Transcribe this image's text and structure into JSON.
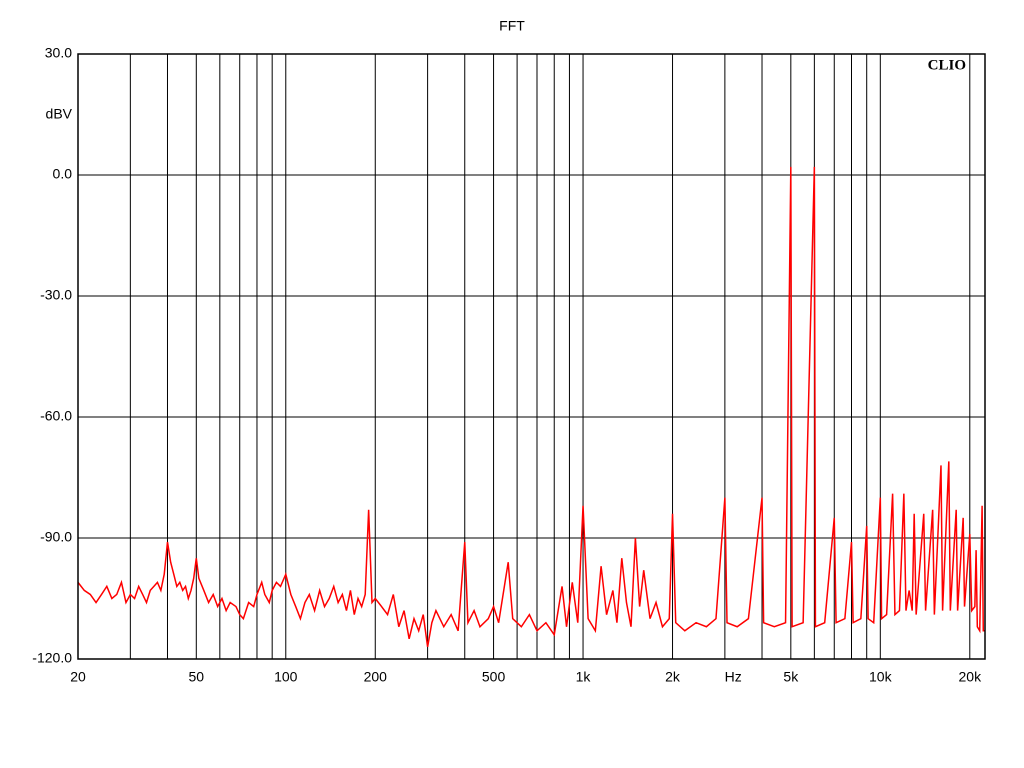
{
  "chart_data": {
    "type": "line",
    "title": "FFT",
    "y_label": "dBV",
    "watermark": "CLIO",
    "x_scale": "log",
    "grid": true,
    "color": "#ff0000",
    "xlim": [
      20,
      22500
    ],
    "ylim": [
      -120,
      30
    ],
    "xticks": [
      20,
      30,
      40,
      50,
      60,
      70,
      80,
      90,
      100,
      200,
      300,
      400,
      500,
      600,
      700,
      800,
      900,
      1000,
      2000,
      3000,
      4000,
      5000,
      6000,
      7000,
      8000,
      9000,
      10000,
      20000
    ],
    "xtick_labels": [
      {
        "value": 20,
        "label": "20"
      },
      {
        "value": 50,
        "label": "50"
      },
      {
        "value": 100,
        "label": "100"
      },
      {
        "value": 200,
        "label": "200"
      },
      {
        "value": 500,
        "label": "500"
      },
      {
        "value": 1000,
        "label": "1k"
      },
      {
        "value": 2000,
        "label": "2k"
      },
      {
        "value": 3200,
        "label": "Hz"
      },
      {
        "value": 5000,
        "label": "5k"
      },
      {
        "value": 10000,
        "label": "10k"
      },
      {
        "value": 20000,
        "label": "20k"
      }
    ],
    "yticks": [
      {
        "value": 30,
        "label": "30.0"
      },
      {
        "value": 0,
        "label": "0.0"
      },
      {
        "value": -30,
        "label": "-30.0"
      },
      {
        "value": -60,
        "label": "-60.0"
      },
      {
        "value": -90,
        "label": "-90.0"
      },
      {
        "value": -120,
        "label": "-120.0"
      }
    ],
    "x": [
      20,
      21,
      22,
      23,
      24,
      25,
      26,
      27,
      28,
      29,
      30,
      31,
      32,
      33,
      34,
      35,
      36,
      37,
      38,
      39,
      40,
      41,
      42,
      43,
      44,
      45,
      46,
      47,
      48,
      49,
      50,
      51,
      53,
      55,
      57,
      59,
      61,
      63,
      65,
      68,
      70,
      72,
      75,
      78,
      80,
      83,
      85,
      88,
      90,
      93,
      96,
      100,
      104,
      108,
      112,
      116,
      120,
      125,
      130,
      135,
      140,
      145,
      150,
      155,
      160,
      165,
      170,
      175,
      180,
      185,
      190,
      195,
      200,
      210,
      220,
      230,
      240,
      250,
      260,
      270,
      280,
      290,
      300,
      310,
      320,
      340,
      360,
      380,
      400,
      410,
      430,
      450,
      480,
      500,
      520,
      560,
      580,
      620,
      660,
      700,
      750,
      800,
      850,
      880,
      920,
      960,
      1000,
      1040,
      1100,
      1150,
      1200,
      1260,
      1300,
      1350,
      1400,
      1450,
      1500,
      1550,
      1600,
      1680,
      1760,
      1850,
      1950,
      2000,
      2050,
      2200,
      2400,
      2600,
      2800,
      3000,
      3050,
      3300,
      3600,
      4000,
      4050,
      4400,
      4800,
      5000,
      5050,
      5500,
      6000,
      6050,
      6500,
      7000,
      7100,
      7600,
      8000,
      8100,
      8600,
      9000,
      9100,
      9500,
      10000,
      10100,
      10500,
      11000,
      11200,
      11600,
      12000,
      12200,
      12500,
      12800,
      13000,
      13200,
      14000,
      14200,
      15000,
      15200,
      16000,
      16200,
      17000,
      17200,
      18000,
      18200,
      19000,
      19200,
      20000,
      20300,
      20800,
      21000,
      21200,
      21600,
      22000,
      22200,
      22500
    ],
    "values": [
      -101,
      -103,
      -104,
      -106,
      -104,
      -102,
      -105,
      -104,
      -101,
      -106,
      -104,
      -105,
      -102,
      -104,
      -106,
      -103,
      -102,
      -101,
      -103,
      -99,
      -91,
      -96,
      -99,
      -102,
      -101,
      -103,
      -102,
      -105,
      -103,
      -100,
      -95,
      -100,
      -103,
      -106,
      -104,
      -107,
      -105,
      -108,
      -106,
      -107,
      -109,
      -110,
      -106,
      -107,
      -104,
      -101,
      -104,
      -106,
      -103,
      -101,
      -102,
      -99,
      -104,
      -107,
      -110,
      -106,
      -104,
      -108,
      -103,
      -107,
      -105,
      -102,
      -106,
      -104,
      -108,
      -103,
      -109,
      -105,
      -107,
      -104,
      -83,
      -106,
      -105,
      -107,
      -109,
      -104,
      -112,
      -108,
      -115,
      -110,
      -113,
      -109,
      -117,
      -111,
      -108,
      -112,
      -109,
      -113,
      -91,
      -111,
      -108,
      -112,
      -110,
      -107,
      -111,
      -96,
      -110,
      -112,
      -109,
      -113,
      -111,
      -114,
      -102,
      -112,
      -101,
      -111,
      -82,
      -110,
      -113,
      -97,
      -109,
      -103,
      -111,
      -95,
      -106,
      -112,
      -90,
      -107,
      -98,
      -110,
      -106,
      -112,
      -110,
      -84,
      -111,
      -113,
      -111,
      -112,
      -110,
      -80,
      -111,
      -112,
      -110,
      -80,
      -111,
      -112,
      -111,
      2,
      -112,
      -111,
      2,
      -112,
      -111,
      -85,
      -111,
      -110,
      -91,
      -111,
      -110,
      -87,
      -110,
      -111,
      -80,
      -110,
      -109,
      -79,
      -109,
      -108,
      -79,
      -108,
      -103,
      -108,
      -84,
      -109,
      -84,
      -108,
      -83,
      -109,
      -72,
      -108,
      -71,
      -108,
      -83,
      -108,
      -85,
      -107,
      -89,
      -108,
      -107,
      -93,
      -112,
      -113,
      -82,
      -113,
      -113
    ]
  }
}
